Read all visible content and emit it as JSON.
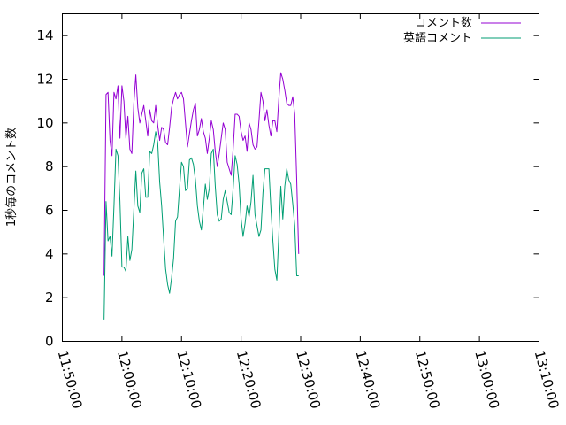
{
  "chart_data": {
    "type": "line",
    "title": "",
    "xlabel": "",
    "ylabel": "1秒毎のコメント数",
    "xlim": [
      "11:50:00",
      "13:10:00"
    ],
    "ylim": [
      0,
      15
    ],
    "x_ticks": [
      "11:50:00",
      "12:00:00",
      "12:10:00",
      "12:20:00",
      "12:30:00",
      "12:40:00",
      "12:50:00",
      "13:00:00",
      "13:10:00"
    ],
    "y_ticks": [
      0,
      2,
      4,
      6,
      8,
      10,
      12,
      14
    ],
    "grid": false,
    "legend_position": "top-right",
    "series": [
      {
        "name": "コメント数",
        "color": "#9400d3",
        "points": [
          [
            "11:57:00",
            3.0
          ],
          [
            "11:57:20",
            11.3
          ],
          [
            "11:57:40",
            11.4
          ],
          [
            "11:58:00",
            9.2
          ],
          [
            "11:58:20",
            8.5
          ],
          [
            "11:58:40",
            11.4
          ],
          [
            "11:59:00",
            11.1
          ],
          [
            "11:59:20",
            11.7
          ],
          [
            "11:59:40",
            9.3
          ],
          [
            "12:00:00",
            11.7
          ],
          [
            "12:00:20",
            11.0
          ],
          [
            "12:00:40",
            9.3
          ],
          [
            "12:01:00",
            10.3
          ],
          [
            "12:01:20",
            8.8
          ],
          [
            "12:01:40",
            8.6
          ],
          [
            "12:02:00",
            10.9
          ],
          [
            "12:02:20",
            12.2
          ],
          [
            "12:02:40",
            10.7
          ],
          [
            "12:03:00",
            10.0
          ],
          [
            "12:03:20",
            10.4
          ],
          [
            "12:03:40",
            10.8
          ],
          [
            "12:04:00",
            10.1
          ],
          [
            "12:04:20",
            9.4
          ],
          [
            "12:04:40",
            10.6
          ],
          [
            "12:05:00",
            10.1
          ],
          [
            "12:05:20",
            10.0
          ],
          [
            "12:05:40",
            10.8
          ],
          [
            "12:06:00",
            9.9
          ],
          [
            "12:06:20",
            9.2
          ],
          [
            "12:06:40",
            9.8
          ],
          [
            "12:07:00",
            9.7
          ],
          [
            "12:07:20",
            9.1
          ],
          [
            "12:07:40",
            9.0
          ],
          [
            "12:08:00",
            9.8
          ],
          [
            "12:08:20",
            10.7
          ],
          [
            "12:08:40",
            11.1
          ],
          [
            "12:09:00",
            11.4
          ],
          [
            "12:09:20",
            11.1
          ],
          [
            "12:09:40",
            11.3
          ],
          [
            "12:10:00",
            11.4
          ],
          [
            "12:10:20",
            11.1
          ],
          [
            "12:10:40",
            10.0
          ],
          [
            "12:11:00",
            8.9
          ],
          [
            "12:11:20",
            9.5
          ],
          [
            "12:11:40",
            10.1
          ],
          [
            "12:12:00",
            10.6
          ],
          [
            "12:12:20",
            10.9
          ],
          [
            "12:12:40",
            9.4
          ],
          [
            "12:13:00",
            9.7
          ],
          [
            "12:13:20",
            10.2
          ],
          [
            "12:13:40",
            9.6
          ],
          [
            "12:14:00",
            9.3
          ],
          [
            "12:14:20",
            8.6
          ],
          [
            "12:14:40",
            9.3
          ],
          [
            "12:15:00",
            10.1
          ],
          [
            "12:15:20",
            9.7
          ],
          [
            "12:15:40",
            8.7
          ],
          [
            "12:16:00",
            8.0
          ],
          [
            "12:16:20",
            8.6
          ],
          [
            "12:16:40",
            9.3
          ],
          [
            "12:17:00",
            10.0
          ],
          [
            "12:17:20",
            9.7
          ],
          [
            "12:17:40",
            8.2
          ],
          [
            "12:18:00",
            7.9
          ],
          [
            "12:18:20",
            7.6
          ],
          [
            "12:18:40",
            8.8
          ],
          [
            "12:19:00",
            10.4
          ],
          [
            "12:19:20",
            10.4
          ],
          [
            "12:19:40",
            10.3
          ],
          [
            "12:20:00",
            9.6
          ],
          [
            "12:20:20",
            9.2
          ],
          [
            "12:20:40",
            9.4
          ],
          [
            "12:21:00",
            8.7
          ],
          [
            "12:21:20",
            10.0
          ],
          [
            "12:21:40",
            9.7
          ],
          [
            "12:22:00",
            9.0
          ],
          [
            "12:22:20",
            8.8
          ],
          [
            "12:22:40",
            8.9
          ],
          [
            "12:23:00",
            10.1
          ],
          [
            "12:23:20",
            11.4
          ],
          [
            "12:23:40",
            11.0
          ],
          [
            "12:24:00",
            10.1
          ],
          [
            "12:24:20",
            10.6
          ],
          [
            "12:24:40",
            9.9
          ],
          [
            "12:25:00",
            9.4
          ],
          [
            "12:25:20",
            10.1
          ],
          [
            "12:25:40",
            10.1
          ],
          [
            "12:26:00",
            9.6
          ],
          [
            "12:26:20",
            11.1
          ],
          [
            "12:26:40",
            12.3
          ],
          [
            "12:27:00",
            12.0
          ],
          [
            "12:27:20",
            11.5
          ],
          [
            "12:27:40",
            10.9
          ],
          [
            "12:28:00",
            10.8
          ],
          [
            "12:28:20",
            10.8
          ],
          [
            "12:28:40",
            11.2
          ],
          [
            "12:29:00",
            10.4
          ],
          [
            "12:29:20",
            7.4
          ],
          [
            "12:29:40",
            4.0
          ]
        ]
      },
      {
        "name": "英語コメント",
        "color": "#009e73",
        "points": [
          [
            "11:57:00",
            1.0
          ],
          [
            "11:57:20",
            6.4
          ],
          [
            "11:57:40",
            4.6
          ],
          [
            "11:58:00",
            4.8
          ],
          [
            "11:58:20",
            3.9
          ],
          [
            "11:58:40",
            6.2
          ],
          [
            "11:59:00",
            8.8
          ],
          [
            "11:59:20",
            8.5
          ],
          [
            "11:59:40",
            6.4
          ],
          [
            "12:00:00",
            3.4
          ],
          [
            "12:00:20",
            3.4
          ],
          [
            "12:00:40",
            3.2
          ],
          [
            "12:01:00",
            4.8
          ],
          [
            "12:01:20",
            3.7
          ],
          [
            "12:01:40",
            4.2
          ],
          [
            "12:02:00",
            6.0
          ],
          [
            "12:02:20",
            7.8
          ],
          [
            "12:02:40",
            6.2
          ],
          [
            "12:03:00",
            5.9
          ],
          [
            "12:03:20",
            7.7
          ],
          [
            "12:03:40",
            7.9
          ],
          [
            "12:04:00",
            6.6
          ],
          [
            "12:04:20",
            6.6
          ],
          [
            "12:04:40",
            8.7
          ],
          [
            "12:05:00",
            8.6
          ],
          [
            "12:05:20",
            9.0
          ],
          [
            "12:05:40",
            9.6
          ],
          [
            "12:06:00",
            9.1
          ],
          [
            "12:06:20",
            7.3
          ],
          [
            "12:06:40",
            6.2
          ],
          [
            "12:07:00",
            4.7
          ],
          [
            "12:07:20",
            3.3
          ],
          [
            "12:07:40",
            2.6
          ],
          [
            "12:08:00",
            2.2
          ],
          [
            "12:08:20",
            2.9
          ],
          [
            "12:08:40",
            3.8
          ],
          [
            "12:09:00",
            5.5
          ],
          [
            "12:09:20",
            5.7
          ],
          [
            "12:09:40",
            7.0
          ],
          [
            "12:10:00",
            8.2
          ],
          [
            "12:10:20",
            8.0
          ],
          [
            "12:10:40",
            6.9
          ],
          [
            "12:11:00",
            7.0
          ],
          [
            "12:11:20",
            8.3
          ],
          [
            "12:11:40",
            8.4
          ],
          [
            "12:12:00",
            8.1
          ],
          [
            "12:12:20",
            7.4
          ],
          [
            "12:12:40",
            6.2
          ],
          [
            "12:13:00",
            5.5
          ],
          [
            "12:13:20",
            5.1
          ],
          [
            "12:13:40",
            6.1
          ],
          [
            "12:14:00",
            7.2
          ],
          [
            "12:14:20",
            6.5
          ],
          [
            "12:14:40",
            7.0
          ],
          [
            "12:15:00",
            8.6
          ],
          [
            "12:15:20",
            8.8
          ],
          [
            "12:15:40",
            7.1
          ],
          [
            "12:16:00",
            5.8
          ],
          [
            "12:16:20",
            5.5
          ],
          [
            "12:16:40",
            5.6
          ],
          [
            "12:17:00",
            6.5
          ],
          [
            "12:17:20",
            6.9
          ],
          [
            "12:17:40",
            6.4
          ],
          [
            "12:18:00",
            5.9
          ],
          [
            "12:18:20",
            5.8
          ],
          [
            "12:18:40",
            7.0
          ],
          [
            "12:19:00",
            8.5
          ],
          [
            "12:19:20",
            8.1
          ],
          [
            "12:19:40",
            7.2
          ],
          [
            "12:20:00",
            5.6
          ],
          [
            "12:20:20",
            4.8
          ],
          [
            "12:20:40",
            5.4
          ],
          [
            "12:21:00",
            6.2
          ],
          [
            "12:21:20",
            5.7
          ],
          [
            "12:21:40",
            6.4
          ],
          [
            "12:22:00",
            7.6
          ],
          [
            "12:22:20",
            5.8
          ],
          [
            "12:22:40",
            5.3
          ],
          [
            "12:23:00",
            4.8
          ],
          [
            "12:23:20",
            5.1
          ],
          [
            "12:23:40",
            6.8
          ],
          [
            "12:24:00",
            7.9
          ],
          [
            "12:24:20",
            7.9
          ],
          [
            "12:24:40",
            7.9
          ],
          [
            "12:25:00",
            6.1
          ],
          [
            "12:25:20",
            4.6
          ],
          [
            "12:25:40",
            3.3
          ],
          [
            "12:26:00",
            2.8
          ],
          [
            "12:26:20",
            4.9
          ],
          [
            "12:26:40",
            7.1
          ],
          [
            "12:27:00",
            5.6
          ],
          [
            "12:27:20",
            7.1
          ],
          [
            "12:27:40",
            7.9
          ],
          [
            "12:28:00",
            7.4
          ],
          [
            "12:28:20",
            7.2
          ],
          [
            "12:28:40",
            6.3
          ],
          [
            "12:29:00",
            5.3
          ],
          [
            "12:29:20",
            3.0
          ],
          [
            "12:29:40",
            3.0
          ]
        ]
      }
    ]
  }
}
